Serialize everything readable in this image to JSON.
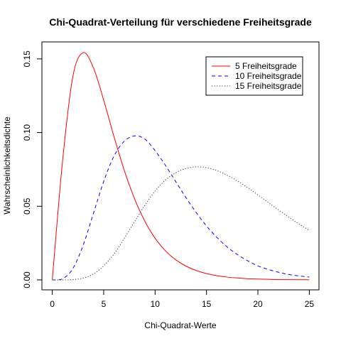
{
  "chart_data": {
    "type": "line",
    "title": "Chi-Quadrat-Verteilung für verschiedene Freiheitsgrade",
    "xlabel": "Chi-Quadrat-Werte",
    "ylabel": "Wahrscheinlichkeitsdichte",
    "xlim": [
      0,
      25
    ],
    "ylim": [
      0,
      0.155
    ],
    "xticks": [
      "0",
      "5",
      "10",
      "15",
      "20",
      "25"
    ],
    "yticks": [
      "0.00",
      "0.05",
      "0.10",
      "0.15"
    ],
    "grid": false,
    "legend_position": "top-right",
    "x": [
      0,
      1,
      2,
      3,
      4,
      5,
      6,
      7,
      8,
      9,
      10,
      11,
      12,
      13,
      14,
      15,
      16,
      17,
      18,
      19,
      20,
      21,
      22,
      23,
      24,
      25
    ],
    "series": [
      {
        "name": "5 Freiheitsgrade",
        "color": "#ff0000",
        "dash": "solid",
        "values": [
          0,
          0.0807,
          0.138,
          0.1542,
          0.144,
          0.122,
          0.0973,
          0.0744,
          0.0551,
          0.0399,
          0.0283,
          0.0198,
          0.0137,
          0.0094,
          0.0064,
          0.0043,
          0.0029,
          0.0019,
          0.0013,
          0.0008,
          0.0006,
          0.0004,
          0.0002,
          0.0002,
          0.0001,
          0.0001
        ]
      },
      {
        "name": "10 Freiheitsgrade",
        "color": "#0000ff",
        "dash": "dashed",
        "values": [
          0,
          0.0008,
          0.0077,
          0.0235,
          0.0451,
          0.0668,
          0.084,
          0.0941,
          0.0977,
          0.0956,
          0.0877,
          0.0778,
          0.0668,
          0.0559,
          0.0457,
          0.0366,
          0.0289,
          0.0224,
          0.0172,
          0.013,
          0.0095,
          0.0071,
          0.0052,
          0.0037,
          0.0027,
          0.0019
        ]
      },
      {
        "name": "15 Freiheitsgrade",
        "color": "#333333",
        "dash": "dotted",
        "values": [
          0,
          0.0,
          0.0002,
          0.0012,
          0.004,
          0.0095,
          0.0176,
          0.0282,
          0.0395,
          0.0506,
          0.0603,
          0.0677,
          0.0727,
          0.0756,
          0.0767,
          0.0762,
          0.0742,
          0.0711,
          0.0672,
          0.0626,
          0.0577,
          0.0526,
          0.0475,
          0.0426,
          0.0379,
          0.0335
        ]
      }
    ]
  }
}
